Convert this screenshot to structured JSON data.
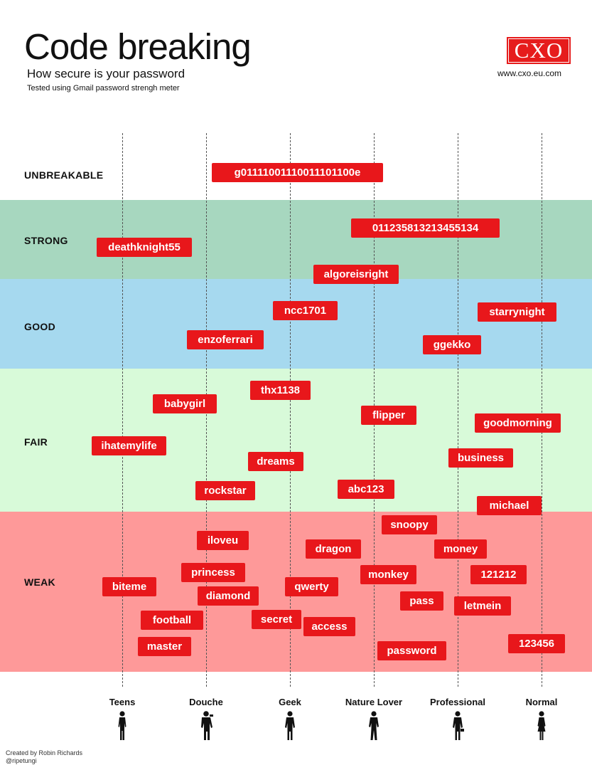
{
  "header": {
    "title": "Code breaking",
    "subtitle": "How secure is your password",
    "note": "Tested using Gmail password strengh meter",
    "logo": "CXO",
    "url": "www.cxo.eu.com"
  },
  "credit": {
    "line1": "Created by Robin Richards",
    "line2": "@ripetungi"
  },
  "colors": {
    "unbreakable": "#ffffff",
    "strong": "#a7d7bf",
    "good": "#a6d9ef",
    "fair": "#d8fad9",
    "weak": "#fe9999",
    "label_red": "#e8171b"
  },
  "chart_data": {
    "type": "scatter",
    "title": "Code breaking",
    "x_categories": [
      "Teens",
      "Douche",
      "Geek",
      "Nature Lover",
      "Professional",
      "Normal"
    ],
    "strength_levels": [
      "UNBREAKABLE",
      "STRONG",
      "GOOD",
      "FAIR",
      "WEAK"
    ],
    "grid": "vertical dashed lines per category",
    "points": [
      {
        "password": "g01111001110011101100e",
        "level": "UNBREAKABLE"
      },
      {
        "password": "011235813213455134",
        "level": "STRONG"
      },
      {
        "password": "deathknight55",
        "level": "STRONG"
      },
      {
        "password": "algoreisright",
        "level": "STRONG"
      },
      {
        "password": "ncc1701",
        "level": "GOOD"
      },
      {
        "password": "starrynight",
        "level": "GOOD"
      },
      {
        "password": "enzoferrari",
        "level": "GOOD"
      },
      {
        "password": "ggekko",
        "level": "GOOD"
      },
      {
        "password": "thx1138",
        "level": "FAIR"
      },
      {
        "password": "babygirl",
        "level": "FAIR"
      },
      {
        "password": "flipper",
        "level": "FAIR"
      },
      {
        "password": "goodmorning",
        "level": "FAIR"
      },
      {
        "password": "ihatemylife",
        "level": "FAIR"
      },
      {
        "password": "business",
        "level": "FAIR"
      },
      {
        "password": "dreams",
        "level": "FAIR"
      },
      {
        "password": "rockstar",
        "level": "FAIR"
      },
      {
        "password": "abc123",
        "level": "FAIR"
      },
      {
        "password": "michael",
        "level": "FAIR"
      },
      {
        "password": "snoopy",
        "level": "WEAK"
      },
      {
        "password": "iloveu",
        "level": "WEAK"
      },
      {
        "password": "dragon",
        "level": "WEAK"
      },
      {
        "password": "money",
        "level": "WEAK"
      },
      {
        "password": "princess",
        "level": "WEAK"
      },
      {
        "password": "monkey",
        "level": "WEAK"
      },
      {
        "password": "121212",
        "level": "WEAK"
      },
      {
        "password": "biteme",
        "level": "WEAK"
      },
      {
        "password": "qwerty",
        "level": "WEAK"
      },
      {
        "password": "diamond",
        "level": "WEAK"
      },
      {
        "password": "pass",
        "level": "WEAK"
      },
      {
        "password": "letmein",
        "level": "WEAK"
      },
      {
        "password": "secret",
        "level": "WEAK"
      },
      {
        "password": "football",
        "level": "WEAK"
      },
      {
        "password": "access",
        "level": "WEAK"
      },
      {
        "password": "master",
        "level": "WEAK"
      },
      {
        "password": "password",
        "level": "WEAK"
      },
      {
        "password": "123456",
        "level": "WEAK"
      }
    ]
  }
}
